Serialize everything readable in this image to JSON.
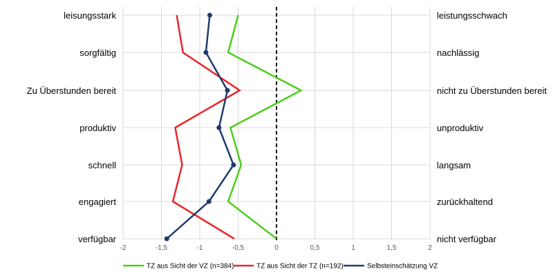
{
  "chart_data": {
    "type": "line",
    "orientation": "horizontal",
    "categories_left": [
      "leisungsstark",
      "sorgfältig",
      "Zu Überstunden bereit",
      "produktiv",
      "schnell",
      "engagiert",
      "verfügbar"
    ],
    "categories_right": [
      "leistungsschwach",
      "nachlässig",
      "nicht zu Überstunden bereit",
      "unproduktiv",
      "langsam",
      "zurückhaltend",
      "nicht verfügbar"
    ],
    "x_ticks": [
      "-2",
      "-1,5",
      "-1",
      "-0,5",
      "0",
      "0,5",
      "1",
      "1,5",
      "2"
    ],
    "xlim": [
      -2,
      2
    ],
    "reference_line_x": 0,
    "grid": true,
    "legend_position": "bottom",
    "series": [
      {
        "name": "TZ aus Sicht der VZ (n=384)",
        "color": "#4ccd1a",
        "marker": "none",
        "values": [
          -0.5,
          -0.63,
          0.32,
          -0.6,
          -0.46,
          -0.63,
          0.0
        ]
      },
      {
        "name": "TZ aus Sicht der TZ (n=192)",
        "color": "#e8262a",
        "marker": "none",
        "values": [
          -1.3,
          -1.22,
          -0.48,
          -1.32,
          -1.23,
          -1.35,
          -0.55
        ]
      },
      {
        "name": "Selbsteinschätzung VZ",
        "color": "#1f3a6e",
        "marker": "circle",
        "values": [
          -0.87,
          -0.92,
          -0.64,
          -0.75,
          -0.56,
          -0.88,
          -1.43
        ]
      }
    ]
  }
}
